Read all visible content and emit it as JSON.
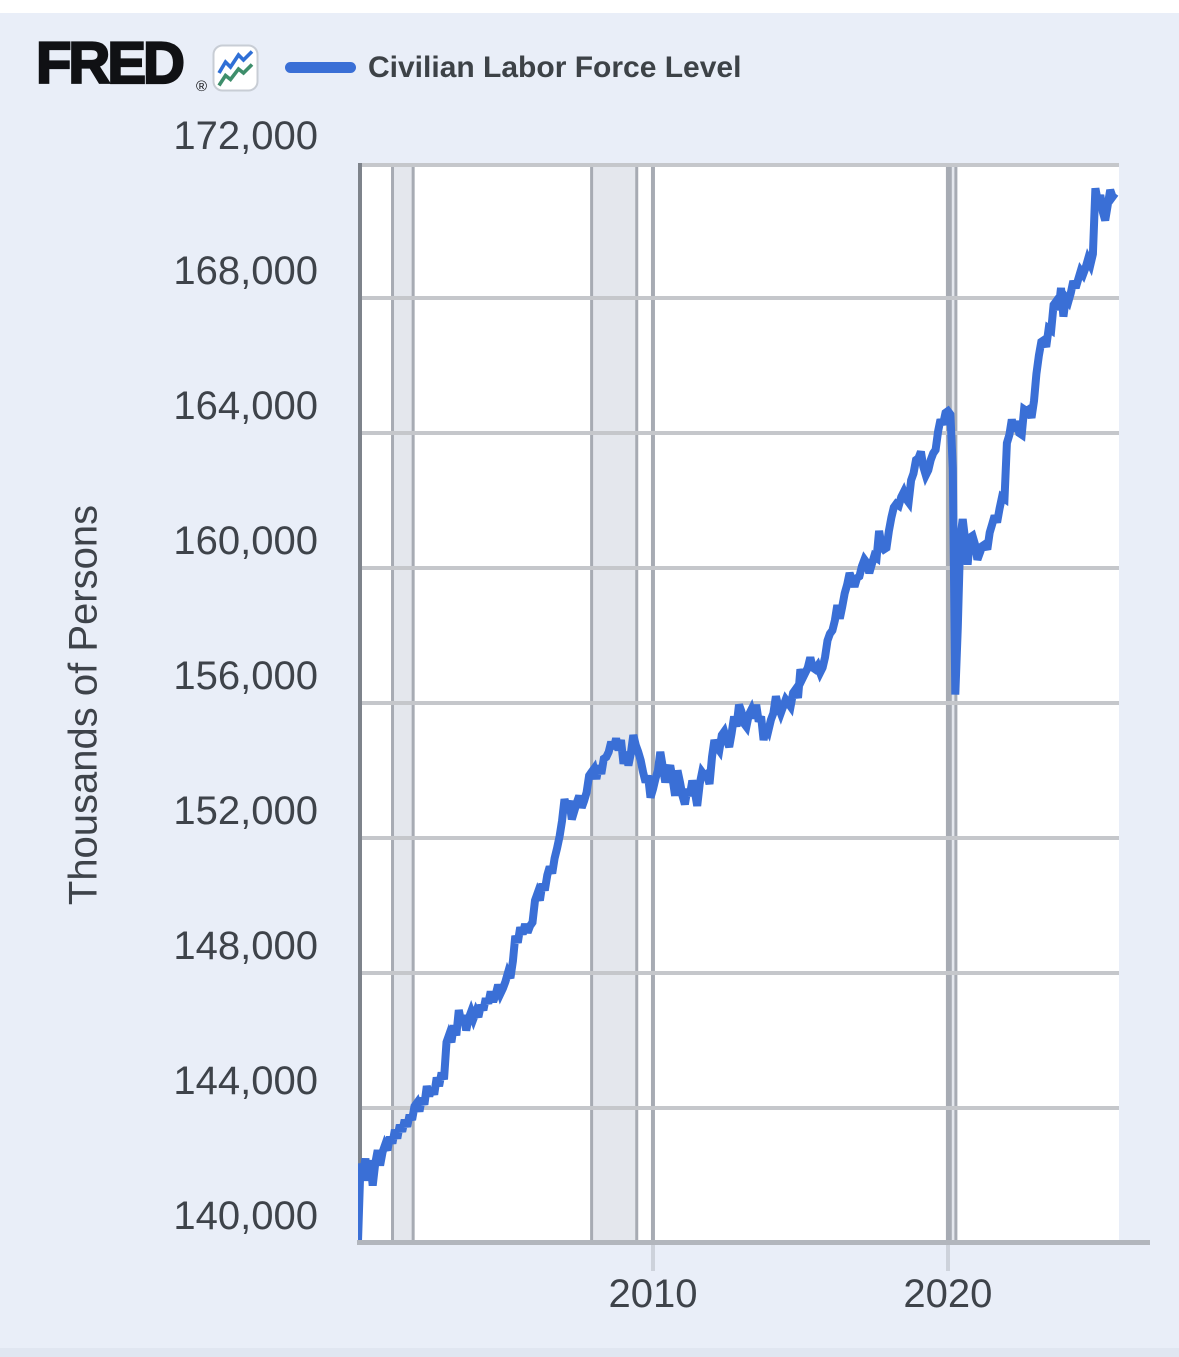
{
  "page": {
    "background": "#e9eef8",
    "top_strip_color": "#ffffff"
  },
  "header": {
    "logo_text": "FRED",
    "registered_mark": "®",
    "icon": "fred-sparkline-icon"
  },
  "legend": {
    "label": "Civilian Labor Force Level",
    "swatch_color": "#3a6fd6"
  },
  "axes": {
    "ylabel": "Thousands of Persons",
    "y_tick_labels": [
      "172,000",
      "168,000",
      "164,000",
      "160,000",
      "156,000",
      "152,000",
      "148,000",
      "144,000",
      "140,000"
    ],
    "x_tick_labels": [
      "2010",
      "2020"
    ]
  },
  "colors": {
    "line": "#3a6fd6",
    "plot_background": "#ffffff",
    "grid": "#c5c7cb",
    "axis_left": "#7e838b",
    "bottom_axis": "#b2b6bd",
    "vertical_gridline": "#a7abb3",
    "recession_fill": "#e4e7ed",
    "recession_edge": "#a7abb3",
    "text": "#3e434a",
    "icon_blue": "#2f6fd6",
    "icon_green": "#3e8e6b"
  },
  "chart_data": {
    "type": "line",
    "title": "Civilian Labor Force Level",
    "xlabel": "",
    "ylabel": "Thousands of Persons",
    "units": "Thousands of Persons",
    "grid": true,
    "legend_position": "top-left",
    "ylim": [
      140000,
      172000
    ],
    "xlim": [
      2000,
      2025.8
    ],
    "y_ticks": [
      172000,
      168000,
      164000,
      160000,
      156000,
      152000,
      148000,
      144000,
      140000
    ],
    "x_ticks": [
      2010,
      2020
    ],
    "recession_bands": [
      [
        2001.17,
        2001.87
      ],
      [
        2007.92,
        2009.45
      ],
      [
        2020.08,
        2020.27
      ]
    ],
    "series": [
      {
        "name": "Civilian Labor Force Level",
        "color": "#3a6fd6",
        "frequency": "monthly",
        "start_year": 2000,
        "values": [
          140050,
          142350,
          142050,
          142500,
          141850,
          142450,
          141700,
          142350,
          142750,
          142300,
          142700,
          142900,
          142750,
          143150,
          142950,
          143350,
          143100,
          143500,
          143300,
          143650,
          143450,
          143800,
          143650,
          144050,
          144150,
          143900,
          144300,
          144100,
          144650,
          144350,
          144600,
          144400,
          144900,
          144650,
          145050,
          144850,
          145950,
          146150,
          145950,
          146450,
          146150,
          146900,
          146550,
          146750,
          146300,
          146650,
          146850,
          146650,
          146850,
          146700,
          147050,
          146900,
          147250,
          147100,
          147450,
          147150,
          147350,
          147650,
          147400,
          147550,
          147750,
          148000,
          147850,
          148350,
          149100,
          148900,
          149350,
          149150,
          149450,
          149200,
          149400,
          149500,
          150150,
          150350,
          150150,
          150650,
          150450,
          150900,
          151150,
          150950,
          151400,
          151700,
          152050,
          152500,
          153150,
          152900,
          153100,
          152550,
          152800,
          153050,
          153250,
          152900,
          153100,
          153350,
          153850,
          153950,
          154050,
          153750,
          154150,
          153900,
          154350,
          154400,
          154550,
          154850,
          154650,
          154950,
          154600,
          154900,
          154200,
          154550,
          154150,
          154500,
          155050,
          154750,
          154550,
          154300,
          153950,
          153650,
          153850,
          153200,
          153450,
          153750,
          154000,
          154550,
          154100,
          153650,
          153950,
          154150,
          153750,
          153250,
          154000,
          153650,
          153250,
          153000,
          153450,
          153250,
          153700,
          153400,
          152950,
          153600,
          153950,
          153850,
          153900,
          153600,
          154400,
          154900,
          154700,
          154600,
          155050,
          155150,
          154900,
          154700,
          155100,
          155600,
          155300,
          155950,
          155750,
          155400,
          155300,
          155650,
          155800,
          155550,
          155950,
          155450,
          155600,
          154900,
          155350,
          155200,
          155500,
          155700,
          156200,
          155900,
          155700,
          155900,
          156100,
          156000,
          155900,
          156300,
          156400,
          156150,
          157000,
          156750,
          156900,
          157050,
          157350,
          157050,
          157000,
          157100,
          156900,
          157050,
          157350,
          157850,
          158050,
          158150,
          158450,
          158900,
          158500,
          158850,
          159250,
          159500,
          159850,
          159650,
          159450,
          159700,
          159750,
          160050,
          160250,
          160150,
          159850,
          160100,
          160350,
          160300,
          161100,
          160650,
          160550,
          160600,
          161100,
          161500,
          161800,
          161900,
          161850,
          162100,
          162250,
          162050,
          161950,
          162600,
          162800,
          163200,
          163250,
          163450,
          163000,
          162750,
          162900,
          163200,
          163400,
          163500,
          164050,
          164400,
          164250,
          164600,
          164650,
          164550,
          162950,
          156250,
          158250,
          160850,
          161450,
          160850,
          160100,
          160900,
          160950,
          160700,
          160250,
          160450,
          160650,
          160700,
          160550,
          161050,
          161300,
          161550,
          161350,
          161750,
          162100,
          162050,
          163700,
          163950,
          164400,
          164050,
          164350,
          164000,
          163950,
          164700,
          164650,
          164700,
          164450,
          164950,
          165750,
          166300,
          166700,
          166750,
          166550,
          167100,
          167050,
          167800,
          167900,
          167650,
          168300,
          167450,
          168000,
          167900,
          168150,
          168500,
          168300,
          168550,
          168800,
          168700,
          168900,
          169150,
          169000,
          169300,
          171250,
          170850,
          171050,
          170550,
          170300,
          170750,
          171200,
          171000,
          171100
        ]
      }
    ]
  }
}
